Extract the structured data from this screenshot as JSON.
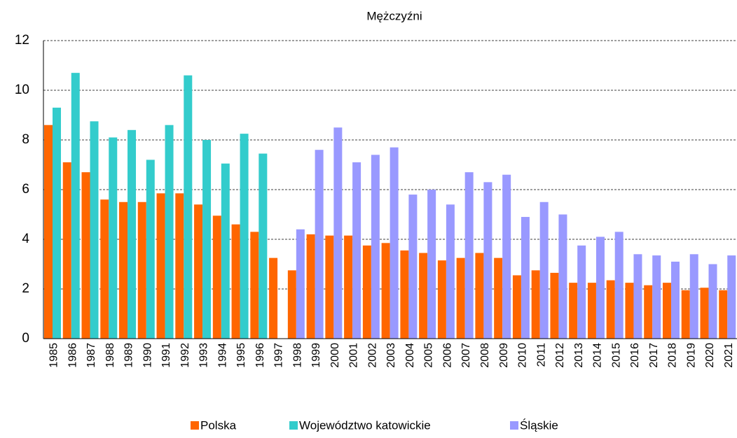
{
  "chart_data": {
    "type": "bar",
    "title": "Mężczyźni",
    "categories": [
      "1985",
      "1986",
      "1987",
      "1988",
      "1989",
      "1990",
      "1991",
      "1992",
      "1993",
      "1994",
      "1995",
      "1996",
      "1997",
      "1998",
      "1999",
      "2000",
      "2001",
      "2002",
      "2003",
      "2004",
      "2005",
      "2006",
      "2007",
      "2008",
      "2009",
      "2010",
      "2011",
      "2012",
      "2013",
      "2014",
      "2015",
      "2016",
      "2017",
      "2018",
      "2019",
      "2020",
      "2021"
    ],
    "series": [
      {
        "name": "Polska",
        "color": "#ff6600",
        "values": [
          8.6,
          7.1,
          6.7,
          5.6,
          5.5,
          5.5,
          5.85,
          5.85,
          5.4,
          4.95,
          4.6,
          4.3,
          3.25,
          2.75,
          4.2,
          4.15,
          4.15,
          3.75,
          3.85,
          3.55,
          3.45,
          3.15,
          3.25,
          3.45,
          3.25,
          2.55,
          2.75,
          2.65,
          2.25,
          2.25,
          2.35,
          2.25,
          2.15,
          2.25,
          1.95,
          2.05,
          1.95
        ]
      },
      {
        "name": "Województwo katowickie",
        "color": "#33cccc",
        "values": [
          9.3,
          10.7,
          8.75,
          8.1,
          8.4,
          7.2,
          8.6,
          10.6,
          8.0,
          7.05,
          8.25,
          7.45,
          null,
          null,
          null,
          null,
          null,
          null,
          null,
          null,
          null,
          null,
          null,
          null,
          null,
          null,
          null,
          null,
          null,
          null,
          null,
          null,
          null,
          null,
          null,
          null,
          null
        ]
      },
      {
        "name": "Śląskie",
        "color": "#9999ff",
        "values": [
          null,
          null,
          null,
          null,
          null,
          null,
          null,
          null,
          null,
          null,
          null,
          null,
          null,
          4.4,
          7.6,
          8.5,
          7.1,
          7.4,
          7.7,
          5.8,
          6.0,
          5.4,
          6.7,
          6.3,
          6.6,
          4.9,
          5.5,
          5.0,
          3.75,
          4.1,
          4.3,
          3.4,
          3.35,
          3.1,
          3.4,
          3.0,
          3.35
        ]
      }
    ],
    "ylim": [
      0,
      12
    ],
    "yticks": [
      0,
      2,
      4,
      6,
      8,
      10,
      12
    ],
    "grid": true,
    "legend": "bottom"
  }
}
